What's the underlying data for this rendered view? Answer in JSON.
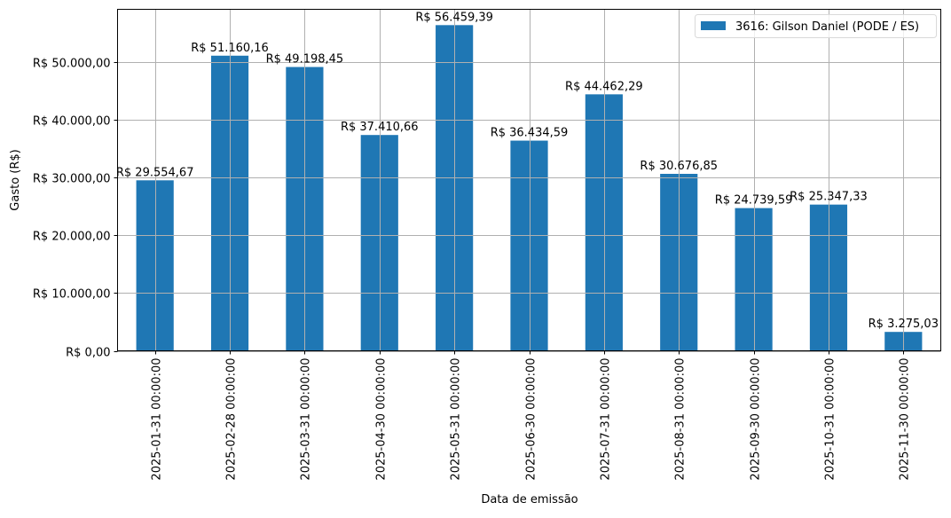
{
  "chart_data": {
    "type": "bar",
    "title": "",
    "xlabel": "Data de emissão",
    "ylabel": "Gasto (R$)",
    "ylim": [
      0,
      59200
    ],
    "grid": true,
    "legend_position": "upper right",
    "categories": [
      "2025-01-31 00:00:00",
      "2025-02-28 00:00:00",
      "2025-03-31 00:00:00",
      "2025-04-30 00:00:00",
      "2025-05-31 00:00:00",
      "2025-06-30 00:00:00",
      "2025-07-31 00:00:00",
      "2025-08-31 00:00:00",
      "2025-09-30 00:00:00",
      "2025-10-31 00:00:00",
      "2025-11-30 00:00:00"
    ],
    "series": [
      {
        "name": "3616: Gilson Daniel (PODE / ES)",
        "color": "#1f77b4",
        "values": [
          29554.67,
          51160.16,
          49198.45,
          37410.66,
          56459.39,
          36434.59,
          44462.29,
          30676.85,
          24739.59,
          25347.33,
          3275.03
        ],
        "labels": [
          "R$ 29.554,67",
          "R$ 51.160,16",
          "R$ 49.198,45",
          "R$ 37.410,66",
          "R$ 56.459,39",
          "R$ 36.434,59",
          "R$ 44.462,29",
          "R$ 30.676,85",
          "R$ 24.739,59",
          "R$ 25.347,33",
          "R$ 3.275,03"
        ]
      }
    ],
    "yticks": [
      0,
      10000,
      20000,
      30000,
      40000,
      50000
    ],
    "ytick_labels": [
      "R$ 0,00",
      "R$ 10.000,00",
      "R$ 20.000,00",
      "R$ 30.000,00",
      "R$ 40.000,00",
      "R$ 50.000,00"
    ]
  },
  "colors": {
    "bar": "#1f77b4",
    "grid": "#b0b0b0",
    "axis": "#000000"
  }
}
